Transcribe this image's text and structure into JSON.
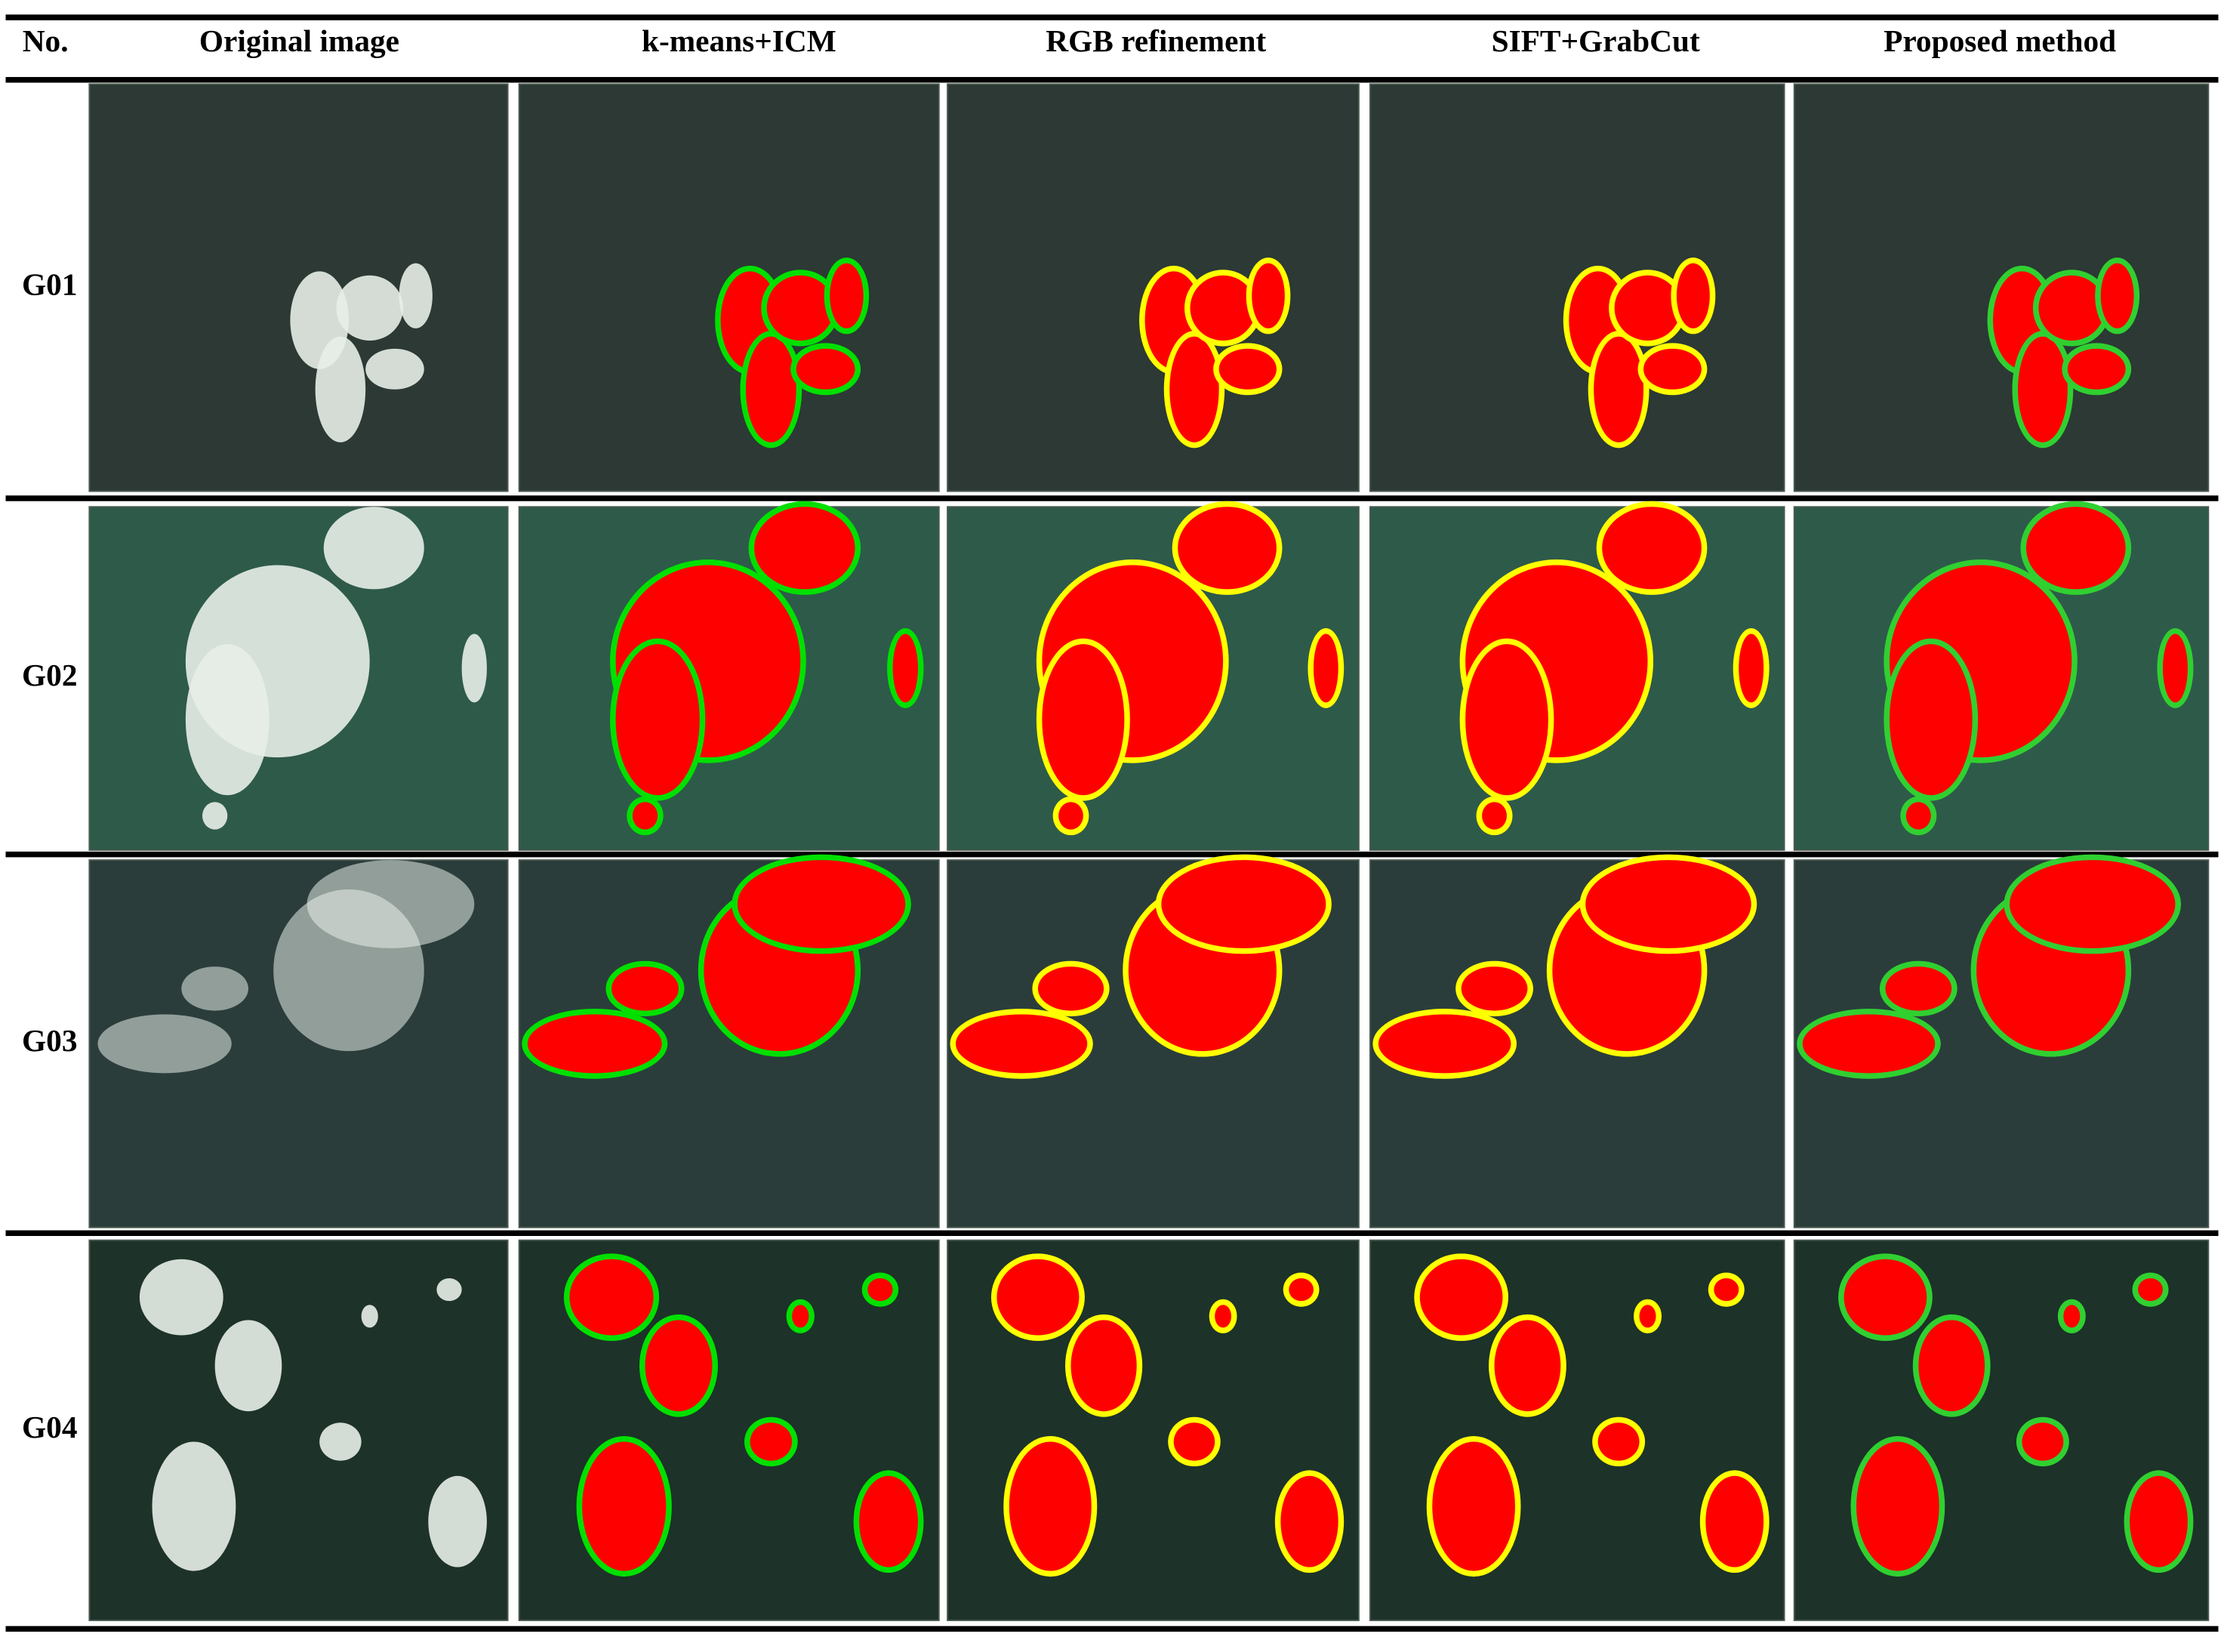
{
  "table": {
    "header": [
      "No.",
      "Original image",
      "k-means+ICM",
      "RGB refinement",
      "SIFT+GrabCut",
      "Proposed method"
    ],
    "rows": [
      [
        "G01"
      ],
      [
        "G02"
      ],
      [
        "G03"
      ],
      [
        "G04"
      ]
    ]
  }
}
